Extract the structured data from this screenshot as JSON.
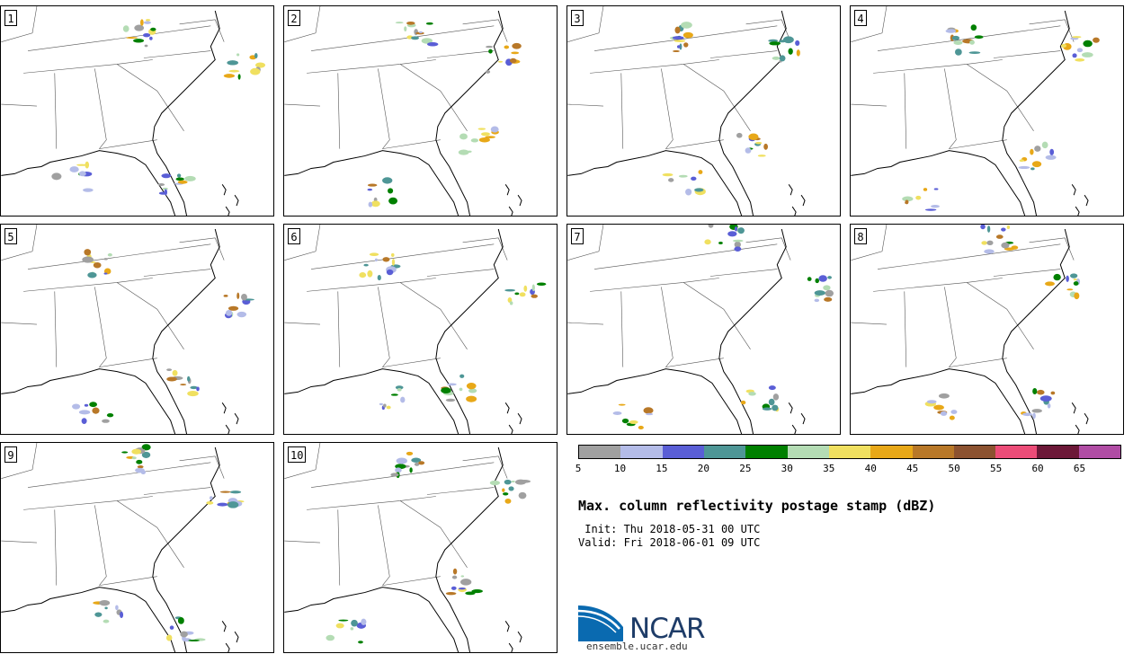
{
  "panels": [
    {
      "label": "1"
    },
    {
      "label": "2"
    },
    {
      "label": "3"
    },
    {
      "label": "4"
    },
    {
      "label": "5"
    },
    {
      "label": "6"
    },
    {
      "label": "7"
    },
    {
      "label": "8"
    },
    {
      "label": "9"
    },
    {
      "label": "10"
    }
  ],
  "colorbar": {
    "levels": [
      "5",
      "10",
      "15",
      "20",
      "25",
      "30",
      "35",
      "40",
      "45",
      "50",
      "55",
      "60",
      "65"
    ],
    "colors": [
      "#a0a0a0",
      "#b4bce8",
      "#5a5ed6",
      "#4e9696",
      "#008000",
      "#b4dcb4",
      "#f0e060",
      "#e8a818",
      "#b87828",
      "#8c5230",
      "#ec4c78",
      "#6c1838",
      "#b04ca4"
    ]
  },
  "title": "Max. column reflectivity postage stamp (dBZ)",
  "init": " Init: Thu 2018-05-31 00 UTC",
  "valid": "Valid: Fri 2018-06-01 09 UTC",
  "logo": {
    "text": "NCAR",
    "url": "ensemble.ucar.edu"
  }
}
